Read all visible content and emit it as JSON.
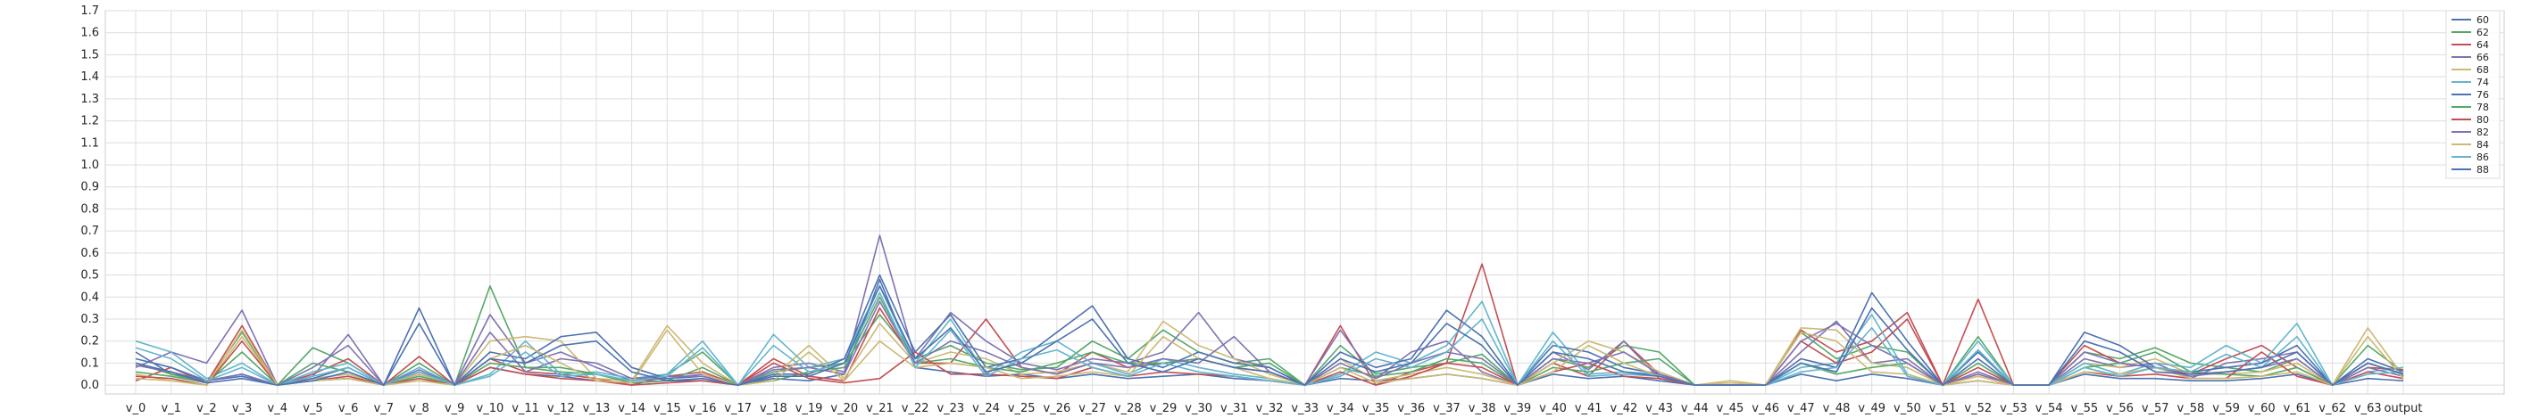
{
  "chart_data": {
    "type": "line",
    "title": "",
    "xlabel": "",
    "ylabel": "",
    "ylim": [
      -0.04,
      1.7
    ],
    "grid": true,
    "legend_position": "top-right",
    "y_ticks": [
      "0.0",
      "0.1",
      "0.2",
      "0.3",
      "0.4",
      "0.5",
      "0.6",
      "0.7",
      "0.8",
      "0.9",
      "1.0",
      "1.1",
      "1.2",
      "1.3",
      "1.4",
      "1.5",
      "1.6",
      "1.7"
    ],
    "categories": [
      "v_0",
      "v_1",
      "v_2",
      "v_3",
      "v_4",
      "v_5",
      "v_6",
      "v_7",
      "v_8",
      "v_9",
      "v_10",
      "v_11",
      "v_12",
      "v_13",
      "v_14",
      "v_15",
      "v_16",
      "v_17",
      "v_18",
      "v_19",
      "v_20",
      "v_21",
      "v_22",
      "v_23",
      "v_24",
      "v_25",
      "v_26",
      "v_27",
      "v_28",
      "v_29",
      "v_30",
      "v_31",
      "v_32",
      "v_33",
      "v_34",
      "v_35",
      "v_36",
      "v_37",
      "v_38",
      "v_39",
      "v_40",
      "v_41",
      "v_42",
      "v_43",
      "v_44",
      "v_45",
      "v_46",
      "v_47",
      "v_48",
      "v_49",
      "v_50",
      "v_51",
      "v_52",
      "v_53",
      "v_54",
      "v_55",
      "v_56",
      "v_57",
      "v_58",
      "v_59",
      "v_60",
      "v_61",
      "v_62",
      "v_63",
      "output"
    ],
    "series": [
      {
        "name": "60",
        "color": "#4c72b0",
        "values": [
          0.15,
          0.05,
          0.02,
          0.04,
          0.0,
          0.02,
          0.03,
          0.0,
          0.06,
          0.0,
          0.08,
          0.05,
          0.04,
          0.02,
          0.01,
          0.02,
          0.02,
          0.0,
          0.03,
          0.02,
          0.05,
          0.48,
          0.08,
          0.06,
          0.04,
          0.05,
          0.03,
          0.05,
          0.03,
          0.04,
          0.05,
          0.03,
          0.02,
          0.0,
          0.03,
          0.02,
          0.03,
          0.05,
          0.03,
          0.0,
          0.05,
          0.03,
          0.04,
          0.02,
          0.0,
          0.0,
          0.0,
          0.05,
          0.02,
          0.05,
          0.03,
          0.0,
          0.02,
          0.0,
          0.0,
          0.05,
          0.03,
          0.03,
          0.02,
          0.02,
          0.03,
          0.05,
          0.0,
          0.03,
          0.02
        ]
      },
      {
        "name": "62",
        "color": "#55a868",
        "values": [
          0.1,
          0.05,
          0.01,
          0.24,
          0.0,
          0.17,
          0.1,
          0.0,
          0.1,
          0.0,
          0.45,
          0.08,
          0.06,
          0.05,
          0.02,
          0.05,
          0.15,
          0.0,
          0.06,
          0.08,
          0.1,
          0.32,
          0.12,
          0.18,
          0.1,
          0.07,
          0.08,
          0.2,
          0.12,
          0.25,
          0.15,
          0.1,
          0.12,
          0.0,
          0.18,
          0.05,
          0.08,
          0.1,
          0.14,
          0.0,
          0.12,
          0.08,
          0.18,
          0.15,
          0.0,
          0.0,
          0.0,
          0.24,
          0.12,
          0.18,
          0.15,
          0.0,
          0.22,
          0.0,
          0.0,
          0.15,
          0.12,
          0.17,
          0.1,
          0.08,
          0.06,
          0.12,
          0.0,
          0.18,
          0.06
        ]
      },
      {
        "name": "64",
        "color": "#c44e52",
        "values": [
          0.02,
          0.08,
          0.01,
          0.27,
          0.0,
          0.05,
          0.12,
          0.0,
          0.13,
          0.0,
          0.12,
          0.06,
          0.05,
          0.03,
          0.0,
          0.04,
          0.06,
          0.0,
          0.12,
          0.04,
          0.02,
          0.35,
          0.1,
          0.1,
          0.3,
          0.08,
          0.05,
          0.15,
          0.08,
          0.1,
          0.12,
          0.08,
          0.06,
          0.0,
          0.27,
          0.0,
          0.06,
          0.1,
          0.55,
          0.0,
          0.1,
          0.04,
          0.2,
          0.05,
          0.0,
          0.0,
          0.0,
          0.25,
          0.15,
          0.2,
          0.33,
          0.0,
          0.39,
          0.0,
          0.0,
          0.18,
          0.1,
          0.08,
          0.05,
          0.12,
          0.18,
          0.08,
          0.0,
          0.08,
          0.07
        ]
      },
      {
        "name": "66",
        "color": "#8172b2",
        "values": [
          0.08,
          0.15,
          0.1,
          0.34,
          0.0,
          0.04,
          0.23,
          0.0,
          0.05,
          0.0,
          0.32,
          0.1,
          0.15,
          0.08,
          0.02,
          0.03,
          0.05,
          0.0,
          0.08,
          0.1,
          0.06,
          0.68,
          0.12,
          0.33,
          0.2,
          0.1,
          0.07,
          0.12,
          0.1,
          0.15,
          0.33,
          0.12,
          0.08,
          0.0,
          0.25,
          0.03,
          0.15,
          0.2,
          0.06,
          0.0,
          0.15,
          0.07,
          0.2,
          0.03,
          0.0,
          0.0,
          0.0,
          0.15,
          0.29,
          0.1,
          0.12,
          0.0,
          0.05,
          0.0,
          0.0,
          0.12,
          0.08,
          0.1,
          0.03,
          0.1,
          0.12,
          0.15,
          0.0,
          0.1,
          0.05
        ]
      },
      {
        "name": "68",
        "color": "#ccb974",
        "values": [
          0.05,
          0.02,
          0.0,
          0.22,
          0.0,
          0.03,
          0.05,
          0.0,
          0.05,
          0.0,
          0.2,
          0.22,
          0.2,
          0.03,
          0.02,
          0.27,
          0.1,
          0.0,
          0.04,
          0.18,
          0.03,
          0.28,
          0.1,
          0.15,
          0.12,
          0.05,
          0.06,
          0.1,
          0.06,
          0.29,
          0.18,
          0.12,
          0.05,
          0.0,
          0.12,
          0.02,
          0.05,
          0.08,
          0.05,
          0.0,
          0.1,
          0.2,
          0.15,
          0.06,
          0.0,
          0.02,
          0.0,
          0.26,
          0.25,
          0.1,
          0.08,
          0.0,
          0.04,
          0.0,
          0.0,
          0.1,
          0.08,
          0.12,
          0.05,
          0.05,
          0.06,
          0.1,
          0.0,
          0.26,
          0.04
        ]
      },
      {
        "name": "74",
        "color": "#64b5cd",
        "values": [
          0.2,
          0.15,
          0.03,
          0.1,
          0.0,
          0.06,
          0.1,
          0.0,
          0.08,
          0.0,
          0.05,
          0.2,
          0.05,
          0.06,
          0.03,
          0.05,
          0.2,
          0.0,
          0.23,
          0.08,
          0.12,
          0.45,
          0.1,
          0.3,
          0.05,
          0.15,
          0.2,
          0.1,
          0.05,
          0.12,
          0.08,
          0.05,
          0.03,
          0.0,
          0.05,
          0.15,
          0.1,
          0.18,
          0.38,
          0.0,
          0.24,
          0.05,
          0.06,
          0.05,
          0.0,
          0.0,
          0.0,
          0.08,
          0.1,
          0.32,
          0.05,
          0.0,
          0.2,
          0.0,
          0.0,
          0.1,
          0.05,
          0.1,
          0.08,
          0.18,
          0.1,
          0.28,
          0.0,
          0.06,
          0.08
        ]
      },
      {
        "name": "76",
        "color": "#4c72b0",
        "values": [
          0.12,
          0.08,
          0.02,
          0.05,
          0.0,
          0.03,
          0.08,
          0.0,
          0.35,
          0.0,
          0.15,
          0.12,
          0.22,
          0.24,
          0.08,
          0.03,
          0.04,
          0.0,
          0.05,
          0.05,
          0.12,
          0.5,
          0.15,
          0.32,
          0.08,
          0.12,
          0.24,
          0.36,
          0.12,
          0.08,
          0.15,
          0.1,
          0.08,
          0.0,
          0.15,
          0.08,
          0.12,
          0.34,
          0.22,
          0.0,
          0.18,
          0.15,
          0.08,
          0.05,
          0.0,
          0.0,
          0.0,
          0.12,
          0.08,
          0.42,
          0.2,
          0.0,
          0.15,
          0.0,
          0.0,
          0.24,
          0.18,
          0.08,
          0.06,
          0.08,
          0.1,
          0.18,
          0.0,
          0.12,
          0.06
        ]
      },
      {
        "name": "78",
        "color": "#55a868",
        "values": [
          0.06,
          0.04,
          0.01,
          0.15,
          0.0,
          0.1,
          0.06,
          0.0,
          0.04,
          0.0,
          0.1,
          0.08,
          0.08,
          0.05,
          0.01,
          0.02,
          0.08,
          0.0,
          0.02,
          0.06,
          0.08,
          0.4,
          0.1,
          0.12,
          0.08,
          0.06,
          0.1,
          0.15,
          0.1,
          0.1,
          0.12,
          0.08,
          0.1,
          0.0,
          0.08,
          0.04,
          0.06,
          0.12,
          0.1,
          0.0,
          0.08,
          0.06,
          0.1,
          0.12,
          0.0,
          0.0,
          0.0,
          0.1,
          0.05,
          0.08,
          0.1,
          0.0,
          0.1,
          0.0,
          0.0,
          0.08,
          0.1,
          0.15,
          0.06,
          0.05,
          0.04,
          0.08,
          0.0,
          0.1,
          0.05
        ]
      },
      {
        "name": "80",
        "color": "#c44e52",
        "values": [
          0.04,
          0.03,
          0.0,
          0.2,
          0.0,
          0.02,
          0.04,
          0.0,
          0.03,
          0.0,
          0.08,
          0.05,
          0.03,
          0.02,
          0.0,
          0.01,
          0.02,
          0.0,
          0.1,
          0.03,
          0.01,
          0.03,
          0.15,
          0.05,
          0.05,
          0.04,
          0.03,
          0.08,
          0.04,
          0.06,
          0.05,
          0.04,
          0.02,
          0.0,
          0.06,
          0.0,
          0.04,
          0.1,
          0.08,
          0.0,
          0.06,
          0.1,
          0.04,
          0.03,
          0.0,
          0.0,
          0.0,
          0.2,
          0.1,
          0.15,
          0.3,
          0.0,
          0.08,
          0.0,
          0.0,
          0.06,
          0.04,
          0.05,
          0.03,
          0.03,
          0.15,
          0.04,
          0.0,
          0.06,
          0.03
        ]
      },
      {
        "name": "82",
        "color": "#8172b2",
        "values": [
          0.09,
          0.06,
          0.02,
          0.05,
          0.0,
          0.08,
          0.18,
          0.0,
          0.07,
          0.0,
          0.24,
          0.06,
          0.12,
          0.1,
          0.03,
          0.04,
          0.04,
          0.0,
          0.07,
          0.08,
          0.05,
          0.38,
          0.1,
          0.2,
          0.15,
          0.08,
          0.05,
          0.1,
          0.08,
          0.12,
          0.1,
          0.22,
          0.06,
          0.0,
          0.1,
          0.03,
          0.1,
          0.15,
          0.12,
          0.0,
          0.12,
          0.1,
          0.15,
          0.05,
          0.0,
          0.0,
          0.0,
          0.2,
          0.28,
          0.18,
          0.1,
          0.0,
          0.06,
          0.0,
          0.0,
          0.15,
          0.1,
          0.08,
          0.04,
          0.06,
          0.08,
          0.12,
          0.0,
          0.08,
          0.04
        ]
      },
      {
        "name": "84",
        "color": "#ccb974",
        "values": [
          0.03,
          0.02,
          0.0,
          0.25,
          0.0,
          0.02,
          0.03,
          0.0,
          0.02,
          0.0,
          0.12,
          0.18,
          0.1,
          0.02,
          0.01,
          0.25,
          0.05,
          0.0,
          0.02,
          0.15,
          0.02,
          0.2,
          0.08,
          0.1,
          0.08,
          0.03,
          0.04,
          0.06,
          0.04,
          0.22,
          0.12,
          0.08,
          0.03,
          0.0,
          0.08,
          0.01,
          0.03,
          0.05,
          0.03,
          0.0,
          0.06,
          0.18,
          0.1,
          0.04,
          0.0,
          0.01,
          0.0,
          0.24,
          0.2,
          0.06,
          0.05,
          0.0,
          0.02,
          0.0,
          0.0,
          0.06,
          0.05,
          0.08,
          0.03,
          0.03,
          0.04,
          0.06,
          0.0,
          0.22,
          0.03
        ]
      },
      {
        "name": "86",
        "color": "#64b5cd",
        "values": [
          0.17,
          0.12,
          0.02,
          0.08,
          0.0,
          0.04,
          0.08,
          0.0,
          0.06,
          0.0,
          0.04,
          0.15,
          0.04,
          0.05,
          0.02,
          0.04,
          0.17,
          0.0,
          0.18,
          0.06,
          0.1,
          0.42,
          0.08,
          0.25,
          0.04,
          0.12,
          0.16,
          0.08,
          0.04,
          0.1,
          0.06,
          0.04,
          0.02,
          0.0,
          0.04,
          0.12,
          0.08,
          0.15,
          0.3,
          0.0,
          0.2,
          0.04,
          0.05,
          0.04,
          0.0,
          0.0,
          0.0,
          0.06,
          0.08,
          0.26,
          0.04,
          0.0,
          0.16,
          0.0,
          0.0,
          0.08,
          0.04,
          0.08,
          0.06,
          0.14,
          0.08,
          0.22,
          0.0,
          0.05,
          0.06
        ]
      },
      {
        "name": "88",
        "color": "#4c72b0",
        "values": [
          0.1,
          0.06,
          0.01,
          0.03,
          0.0,
          0.02,
          0.06,
          0.0,
          0.28,
          0.0,
          0.12,
          0.1,
          0.18,
          0.2,
          0.06,
          0.02,
          0.03,
          0.0,
          0.04,
          0.04,
          0.1,
          0.45,
          0.12,
          0.26,
          0.06,
          0.1,
          0.2,
          0.3,
          0.1,
          0.06,
          0.12,
          0.08,
          0.06,
          0.0,
          0.12,
          0.06,
          0.1,
          0.28,
          0.18,
          0.0,
          0.15,
          0.12,
          0.06,
          0.04,
          0.0,
          0.0,
          0.0,
          0.1,
          0.06,
          0.35,
          0.16,
          0.0,
          0.12,
          0.0,
          0.0,
          0.2,
          0.15,
          0.06,
          0.05,
          0.06,
          0.08,
          0.15,
          0.0,
          0.1,
          0.05
        ]
      }
    ]
  }
}
